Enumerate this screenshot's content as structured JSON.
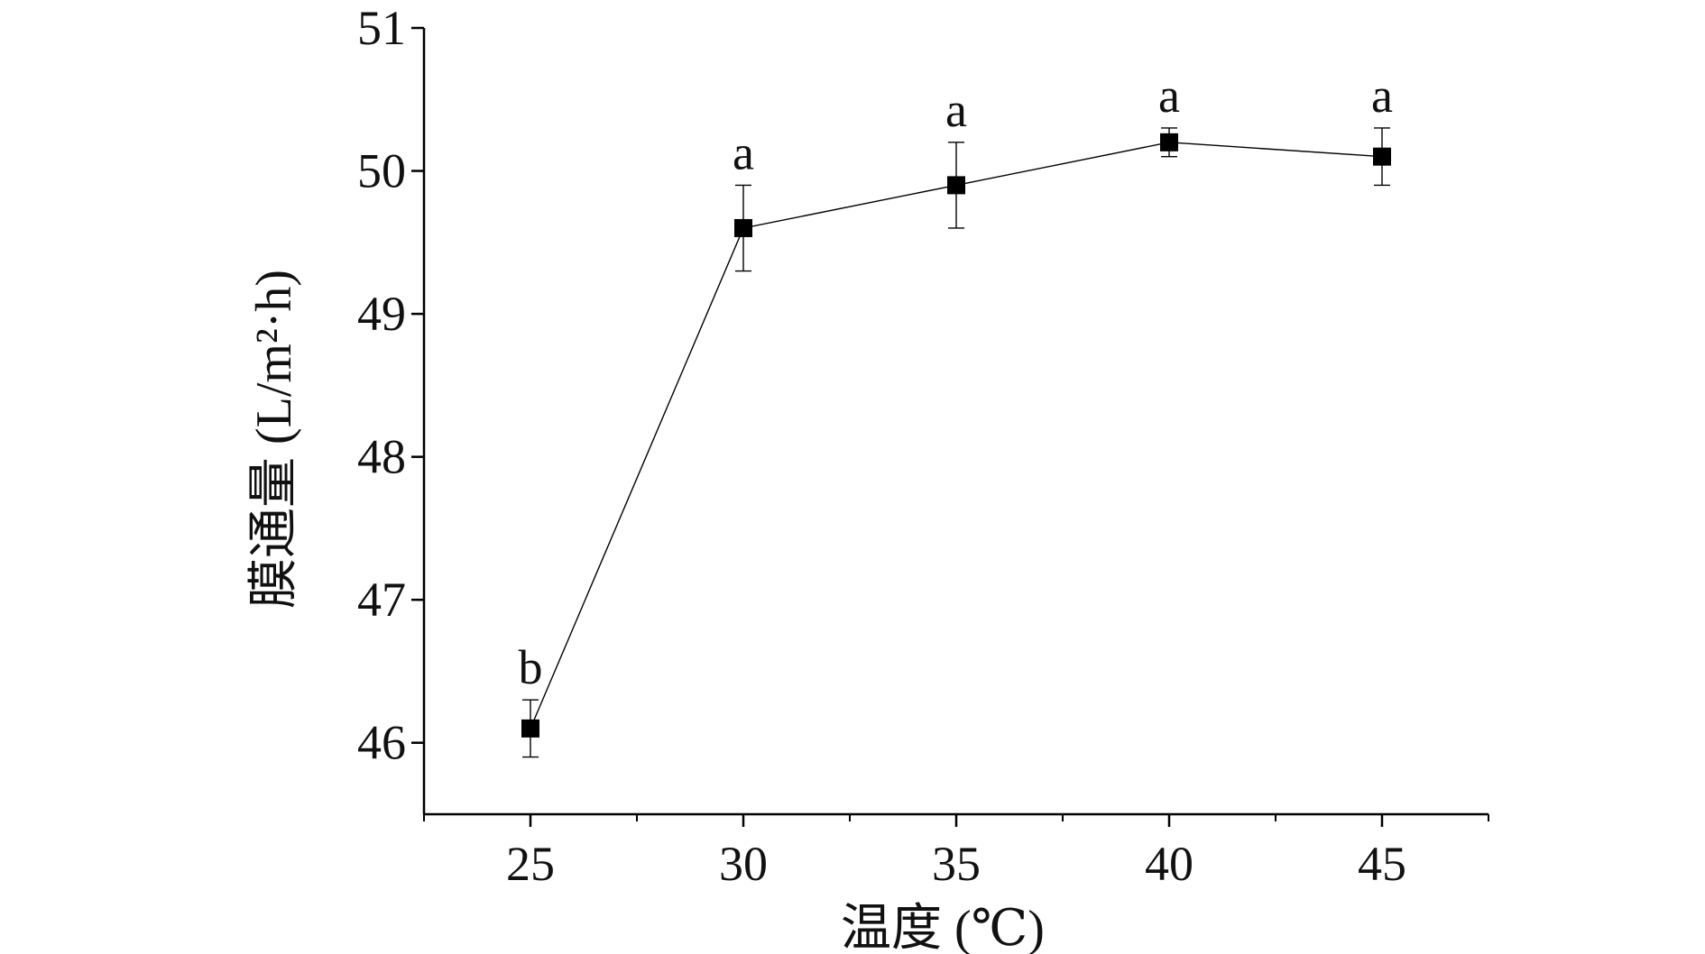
{
  "chart_data": {
    "type": "scatter",
    "xlabel": "温度 (℃)",
    "ylabel": "膜通量 (L/m²·h)",
    "xlim": [
      22.5,
      47.5
    ],
    "ylim": [
      45.5,
      51
    ],
    "x_ticks": [
      25,
      30,
      35,
      40,
      45
    ],
    "y_ticks": [
      46,
      47,
      48,
      49,
      50,
      51
    ],
    "grid": false,
    "series": [
      {
        "x": [
          25,
          30,
          35,
          40,
          45
        ],
        "y": [
          46.1,
          49.6,
          49.9,
          50.2,
          50.1
        ],
        "error": [
          0.2,
          0.3,
          0.3,
          0.1,
          0.2
        ],
        "significance": [
          "b",
          "a",
          "a",
          "a",
          "a"
        ],
        "color": "#000000",
        "marker": "square",
        "line": true
      }
    ]
  }
}
